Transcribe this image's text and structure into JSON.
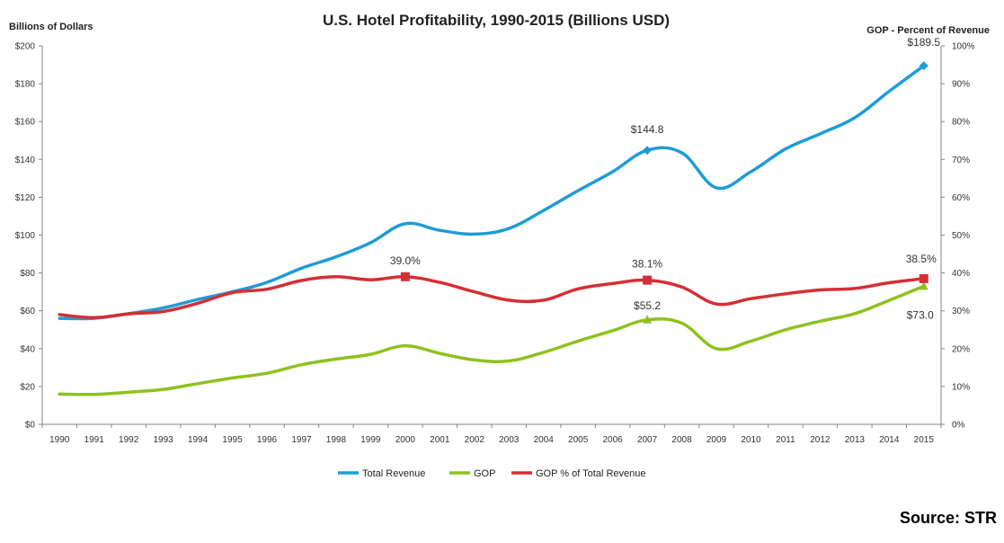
{
  "chart_data": {
    "type": "line",
    "title": "U.S. Hotel Profitability, 1990-2015 (Billions USD)",
    "ylabel": "Billions of Dollars",
    "y2label": "GOP - Percent of Revenue",
    "x": [
      "1990",
      "1991",
      "1992",
      "1993",
      "1994",
      "1995",
      "1996",
      "1997",
      "1998",
      "1999",
      "2000",
      "2001",
      "2002",
      "2003",
      "2004",
      "2005",
      "2006",
      "2007",
      "2008",
      "2009",
      "2010",
      "2011",
      "2012",
      "2013",
      "2014",
      "2015"
    ],
    "ylim": [
      0,
      200
    ],
    "y2lim": [
      0,
      100
    ],
    "yticks": [
      "$0",
      "$20",
      "$40",
      "$60",
      "$80",
      "$100",
      "$120",
      "$140",
      "$160",
      "$180",
      "$200"
    ],
    "y2ticks": [
      "0%",
      "10%",
      "20%",
      "30%",
      "40%",
      "50%",
      "60%",
      "70%",
      "80%",
      "90%",
      "100%"
    ],
    "grid": false,
    "legend_position": "bottom",
    "series": [
      {
        "name": "Total Revenue",
        "axis": "left",
        "color": "#1E9CD7",
        "marker": "diamond",
        "values": [
          56.0,
          56.0,
          58.5,
          61.5,
          66.0,
          70.0,
          75.0,
          82.5,
          88.5,
          96.0,
          106.0,
          102.5,
          100.5,
          103.5,
          113.0,
          123.5,
          133.5,
          144.8,
          143.5,
          125.0,
          133.5,
          145.5,
          153.5,
          162.0,
          176.0,
          189.5
        ],
        "labels": [
          {
            "index": 17,
            "text": "$144.8"
          },
          {
            "index": 25,
            "text": "$189.5"
          }
        ]
      },
      {
        "name": "GOP",
        "axis": "left",
        "color": "#8DC21F",
        "marker": "triangle",
        "values": [
          16.0,
          15.8,
          17.0,
          18.5,
          21.5,
          24.5,
          27.0,
          31.5,
          34.5,
          37.0,
          41.5,
          37.5,
          34.0,
          33.5,
          38.0,
          44.0,
          49.5,
          55.2,
          53.5,
          40.0,
          44.0,
          50.0,
          54.5,
          58.5,
          65.5,
          73.0
        ],
        "labels": [
          {
            "index": 17,
            "text": "$55.2"
          },
          {
            "index": 25,
            "text": "$73.0"
          }
        ]
      },
      {
        "name": "GOP % of Total Revenue",
        "axis": "right",
        "color": "#D62E35",
        "marker": "square",
        "values": [
          29.0,
          28.2,
          29.2,
          29.8,
          32.0,
          34.8,
          35.7,
          38.0,
          39.0,
          38.2,
          39.0,
          37.5,
          35.0,
          32.8,
          32.8,
          35.8,
          37.2,
          38.1,
          36.3,
          31.8,
          33.2,
          34.5,
          35.5,
          35.9,
          37.4,
          38.5
        ],
        "labels": [
          {
            "index": 10,
            "text": "39.0%"
          },
          {
            "index": 17,
            "text": "38.1%"
          },
          {
            "index": 25,
            "text": "38.5%"
          }
        ]
      }
    ]
  },
  "source": "Source: STR"
}
